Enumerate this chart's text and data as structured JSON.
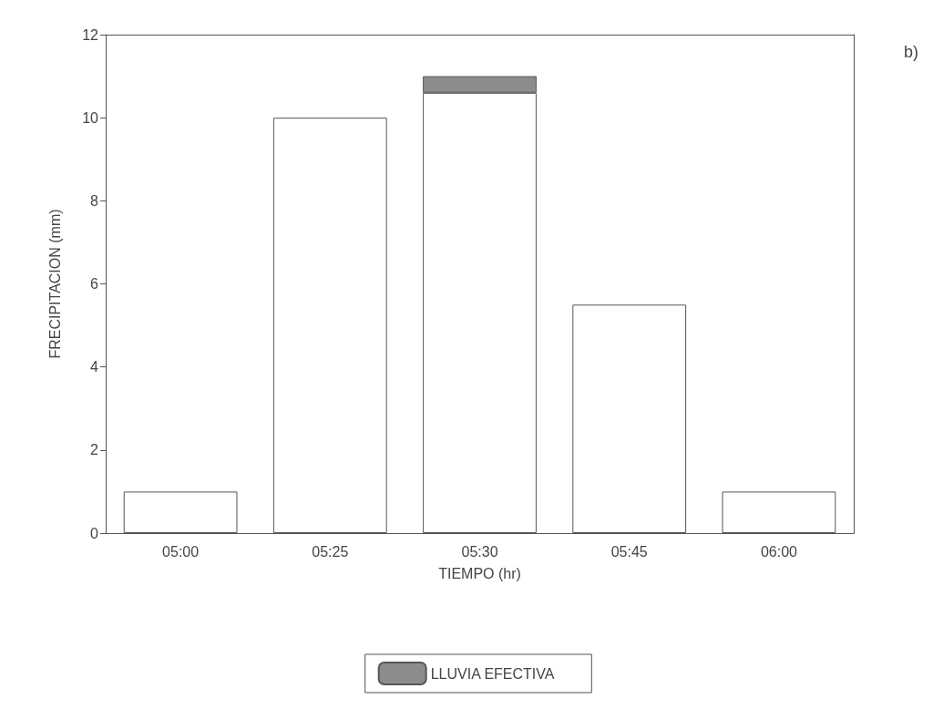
{
  "chart_data": {
    "type": "bar",
    "stacked": true,
    "xlabel": "TIEMPO (hr)",
    "ylabel": "FRECIPITACION (mm)",
    "categories": [
      "05:00",
      "05:25",
      "05:30",
      "05:45",
      "06:00"
    ],
    "series": [
      {
        "color": "#ffffff",
        "values": [
          1,
          10,
          10.6,
          5.5,
          1
        ]
      },
      {
        "name": "LLUVIA EFECTIVA",
        "color": "#8c8c8c",
        "values": [
          null,
          null,
          0.4,
          null,
          null
        ]
      }
    ],
    "ylim": [
      0,
      12
    ],
    "yticks": [
      0,
      2,
      4,
      6,
      8,
      10,
      12
    ],
    "grid": false,
    "legend": "bottom",
    "annotations": [
      "b)"
    ]
  }
}
